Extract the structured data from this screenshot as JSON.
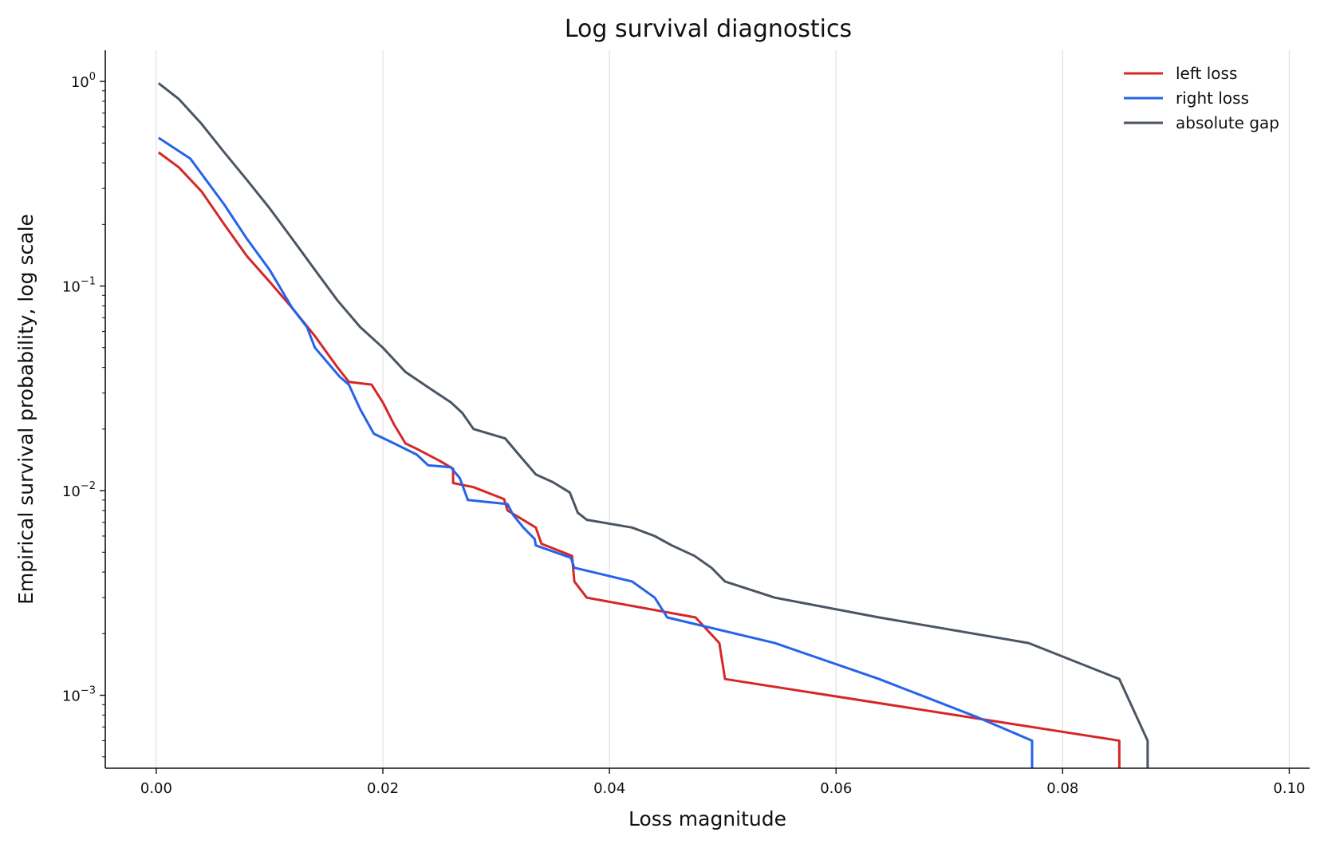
{
  "chart_data": {
    "type": "line",
    "title": "Log survival diagnostics",
    "xlabel": "Loss magnitude",
    "ylabel": "Empirical survival probability, log scale",
    "xlim": [
      -0.0045,
      0.1018
    ],
    "ylim": [
      0.00044,
      1.42
    ],
    "yscale": "log",
    "grid": "vertical",
    "legend_position": "top-right",
    "x_ticks": [
      {
        "value": 0.0,
        "label": "0.00"
      },
      {
        "value": 0.02,
        "label": "0.02"
      },
      {
        "value": 0.04,
        "label": "0.04"
      },
      {
        "value": 0.06,
        "label": "0.06"
      },
      {
        "value": 0.08,
        "label": "0.08"
      },
      {
        "value": 0.1,
        "label": "0.10"
      }
    ],
    "y_ticks": [
      {
        "value": 1,
        "base": "10",
        "exp": "0"
      },
      {
        "value": 0.1,
        "base": "10",
        "exp": "−1"
      },
      {
        "value": 0.01,
        "base": "10",
        "exp": "−2"
      },
      {
        "value": 0.001,
        "base": "10",
        "exp": "−3"
      }
    ],
    "series": [
      {
        "name": "left loss",
        "color": "#d62728",
        "points": [
          [
            0.0002,
            0.45
          ],
          [
            0.002,
            0.38
          ],
          [
            0.004,
            0.29
          ],
          [
            0.006,
            0.2
          ],
          [
            0.008,
            0.14
          ],
          [
            0.01,
            0.105
          ],
          [
            0.012,
            0.078
          ],
          [
            0.014,
            0.057
          ],
          [
            0.016,
            0.04
          ],
          [
            0.017,
            0.034
          ],
          [
            0.019,
            0.033
          ],
          [
            0.02,
            0.027
          ],
          [
            0.021,
            0.021
          ],
          [
            0.022,
            0.017
          ],
          [
            0.023,
            0.016
          ],
          [
            0.025,
            0.014
          ],
          [
            0.0262,
            0.0128
          ],
          [
            0.0262,
            0.0109
          ],
          [
            0.028,
            0.0104
          ],
          [
            0.0307,
            0.0091
          ],
          [
            0.031,
            0.008
          ],
          [
            0.0335,
            0.0066
          ],
          [
            0.034,
            0.0055
          ],
          [
            0.0367,
            0.0048
          ],
          [
            0.0369,
            0.0036
          ],
          [
            0.038,
            0.003
          ],
          [
            0.0476,
            0.0024
          ],
          [
            0.0497,
            0.0018
          ],
          [
            0.0502,
            0.0012
          ],
          [
            0.085,
            0.0006
          ],
          [
            0.085,
            0.00044
          ]
        ]
      },
      {
        "name": "right loss",
        "color": "#2563eb",
        "points": [
          [
            0.0002,
            0.53
          ],
          [
            0.003,
            0.42
          ],
          [
            0.006,
            0.25
          ],
          [
            0.008,
            0.17
          ],
          [
            0.01,
            0.12
          ],
          [
            0.012,
            0.078
          ],
          [
            0.0133,
            0.063
          ],
          [
            0.014,
            0.05
          ],
          [
            0.0162,
            0.036
          ],
          [
            0.017,
            0.033
          ],
          [
            0.018,
            0.025
          ],
          [
            0.0192,
            0.019
          ],
          [
            0.021,
            0.017
          ],
          [
            0.023,
            0.015
          ],
          [
            0.024,
            0.0133
          ],
          [
            0.026,
            0.013
          ],
          [
            0.0268,
            0.0115
          ],
          [
            0.0275,
            0.009
          ],
          [
            0.031,
            0.0086
          ],
          [
            0.0315,
            0.0076
          ],
          [
            0.0324,
            0.0066
          ],
          [
            0.0334,
            0.0058
          ],
          [
            0.0335,
            0.0054
          ],
          [
            0.0366,
            0.0047
          ],
          [
            0.0369,
            0.0042
          ],
          [
            0.042,
            0.0036
          ],
          [
            0.044,
            0.003
          ],
          [
            0.0451,
            0.0024
          ],
          [
            0.0546,
            0.0018
          ],
          [
            0.0638,
            0.0012
          ],
          [
            0.0725,
            0.00078
          ],
          [
            0.0773,
            0.0006
          ],
          [
            0.0773,
            0.00044
          ]
        ]
      },
      {
        "name": "absolute gap",
        "color": "#4b5563",
        "points": [
          [
            0.0002,
            0.98
          ],
          [
            0.002,
            0.82
          ],
          [
            0.004,
            0.62
          ],
          [
            0.006,
            0.45
          ],
          [
            0.008,
            0.33
          ],
          [
            0.01,
            0.24
          ],
          [
            0.012,
            0.17
          ],
          [
            0.014,
            0.12
          ],
          [
            0.016,
            0.085
          ],
          [
            0.018,
            0.063
          ],
          [
            0.02,
            0.05
          ],
          [
            0.022,
            0.038
          ],
          [
            0.024,
            0.032
          ],
          [
            0.026,
            0.027
          ],
          [
            0.027,
            0.024
          ],
          [
            0.028,
            0.02
          ],
          [
            0.0308,
            0.018
          ],
          [
            0.032,
            0.015
          ],
          [
            0.0335,
            0.012
          ],
          [
            0.035,
            0.011
          ],
          [
            0.0365,
            0.0098
          ],
          [
            0.0372,
            0.0078
          ],
          [
            0.038,
            0.0072
          ],
          [
            0.042,
            0.0066
          ],
          [
            0.044,
            0.006
          ],
          [
            0.0455,
            0.0054
          ],
          [
            0.0475,
            0.0048
          ],
          [
            0.049,
            0.0042
          ],
          [
            0.0502,
            0.0036
          ],
          [
            0.0546,
            0.003
          ],
          [
            0.0638,
            0.0024
          ],
          [
            0.077,
            0.0018
          ],
          [
            0.085,
            0.0012
          ],
          [
            0.0875,
            0.0006
          ],
          [
            0.0875,
            0.00044
          ]
        ]
      }
    ]
  }
}
